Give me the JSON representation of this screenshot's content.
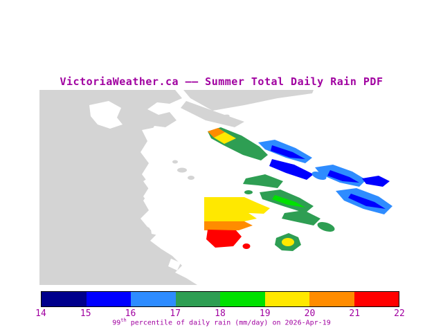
{
  "title": "VictoriaWeather.ca —— Summer Total Daily Rain PDF",
  "map": {
    "region": "southern-vancouver-island-and-gulf-islands",
    "land_color": "#d4d4d4",
    "water_color": "#ffffff"
  },
  "colorbar": {
    "min": 14,
    "max": 22,
    "tick_labels": [
      "14",
      "15",
      "16",
      "17",
      "18",
      "19",
      "20",
      "21",
      "22"
    ],
    "segment_colors": [
      "#00008c",
      "#0000ff",
      "#2e8cff",
      "#2e9e53",
      "#00e100",
      "#ffe800",
      "#ff8c00",
      "#ff0000"
    ],
    "caption": {
      "base": "99",
      "sup": "th",
      "rest": " percentile of daily rain (mm/day) on 2026-Apr-19"
    }
  },
  "colors": {
    "text": "#a000a0"
  }
}
